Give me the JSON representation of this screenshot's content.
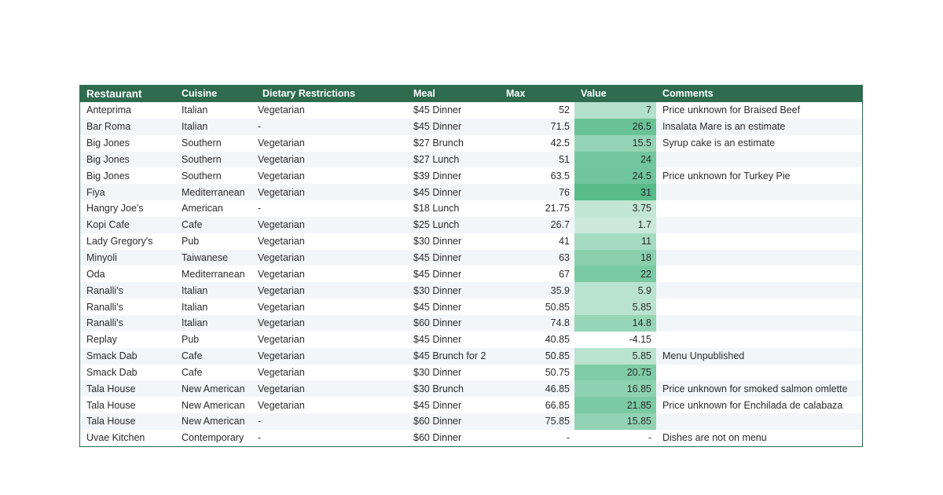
{
  "table": {
    "headers": {
      "restaurant": "Restaurant",
      "cuisine": "Cuisine",
      "dietary": "Dietary Restrictions",
      "meal": "Meal",
      "max": "Max",
      "value": "Value",
      "comments": "Comments"
    },
    "colors": {
      "header_bg": "#2e6b4f",
      "value_scale_low": "#ffffff",
      "value_scale_high": "#57bb8a"
    },
    "rows": [
      {
        "restaurant": "Anteprima",
        "cuisine": "Italian",
        "dietary": "Vegetarian",
        "meal": "$45 Dinner",
        "max": "52",
        "value": "7",
        "comments": "Price unknown for Braised Beef"
      },
      {
        "restaurant": "Bar Roma",
        "cuisine": "Italian",
        "dietary": "-",
        "meal": "$45 Dinner",
        "max": "71.5",
        "value": "26.5",
        "comments": "Insalata Mare is an estimate"
      },
      {
        "restaurant": "Big Jones",
        "cuisine": "Southern",
        "dietary": "Vegetarian",
        "meal": "$27 Brunch",
        "max": "42.5",
        "value": "15.5",
        "comments": "Syrup cake is an estimate"
      },
      {
        "restaurant": "Big Jones",
        "cuisine": "Southern",
        "dietary": "Vegetarian",
        "meal": "$27 Lunch",
        "max": "51",
        "value": "24",
        "comments": ""
      },
      {
        "restaurant": "Big Jones",
        "cuisine": "Southern",
        "dietary": "Vegetarian",
        "meal": "$39 Dinner",
        "max": "63.5",
        "value": "24.5",
        "comments": "Price unknown for Turkey Pie"
      },
      {
        "restaurant": "Fiya",
        "cuisine": "Mediterranean",
        "dietary": "Vegetarian",
        "meal": "$45 Dinner",
        "max": "76",
        "value": "31",
        "comments": ""
      },
      {
        "restaurant": "Hangry Joe's",
        "cuisine": "American",
        "dietary": "-",
        "meal": "$18 Lunch",
        "max": "21.75",
        "value": "3.75",
        "comments": ""
      },
      {
        "restaurant": "Kopi Cafe",
        "cuisine": "Cafe",
        "dietary": "Vegetarian",
        "meal": "$25 Lunch",
        "max": "26.7",
        "value": "1.7",
        "comments": ""
      },
      {
        "restaurant": "Lady Gregory's",
        "cuisine": "Pub",
        "dietary": "Vegetarian",
        "meal": "$30 Dinner",
        "max": "41",
        "value": "11",
        "comments": ""
      },
      {
        "restaurant": "Minyoli",
        "cuisine": "Taiwanese",
        "dietary": "Vegetarian",
        "meal": "$45 Dinner",
        "max": "63",
        "value": "18",
        "comments": ""
      },
      {
        "restaurant": "Oda",
        "cuisine": "Mediterranean",
        "dietary": "Vegetarian",
        "meal": "$45 Dinner",
        "max": "67",
        "value": "22",
        "comments": ""
      },
      {
        "restaurant": "Ranalli's",
        "cuisine": "Italian",
        "dietary": "Vegetarian",
        "meal": "$30 Dinner",
        "max": "35.9",
        "value": "5.9",
        "comments": ""
      },
      {
        "restaurant": "Ranalli's",
        "cuisine": "Italian",
        "dietary": "Vegetarian",
        "meal": "$45 Dinner",
        "max": "50.85",
        "value": "5.85",
        "comments": ""
      },
      {
        "restaurant": "Ranalli's",
        "cuisine": "Italian",
        "dietary": "Vegetarian",
        "meal": "$60 Dinner",
        "max": "74.8",
        "value": "14.8",
        "comments": ""
      },
      {
        "restaurant": "Replay",
        "cuisine": "Pub",
        "dietary": "Vegetarian",
        "meal": "$45 Dinner",
        "max": "40.85",
        "value": "-4.15",
        "comments": ""
      },
      {
        "restaurant": "Smack Dab",
        "cuisine": "Cafe",
        "dietary": "Vegetarian",
        "meal": "$45 Brunch for 2",
        "max": "50.85",
        "value": "5.85",
        "comments": "Menu Unpublished"
      },
      {
        "restaurant": "Smack Dab",
        "cuisine": "Cafe",
        "dietary": "Vegetarian",
        "meal": "$30 Dinner",
        "max": "50.75",
        "value": "20.75",
        "comments": ""
      },
      {
        "restaurant": "Tala House",
        "cuisine": "New American",
        "dietary": "Vegetarian",
        "meal": "$30 Brunch",
        "max": "46.85",
        "value": "16.85",
        "comments": "Price unknown for smoked salmon omlette"
      },
      {
        "restaurant": "Tala House",
        "cuisine": "New American",
        "dietary": "Vegetarian",
        "meal": "$45 Dinner",
        "max": "66.85",
        "value": "21.85",
        "comments": "Price unknown for Enchilada de calabaza"
      },
      {
        "restaurant": "Tala House",
        "cuisine": "New American",
        "dietary": "-",
        "meal": "$60 Dinner",
        "max": "75.85",
        "value": "15.85",
        "comments": ""
      },
      {
        "restaurant": "Uvae Kitchen",
        "cuisine": "Contemporary",
        "dietary": "-",
        "meal": "$60 Dinner",
        "max": "-",
        "value": "-",
        "comments": "Dishes are not on menu"
      }
    ]
  }
}
